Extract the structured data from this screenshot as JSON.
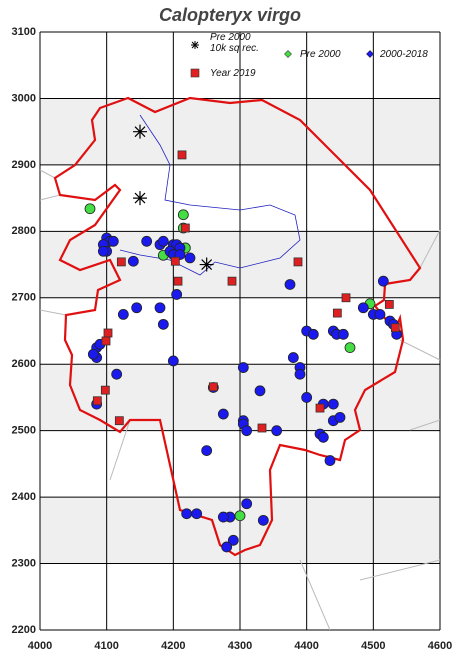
{
  "chart_data": {
    "type": "scatter",
    "title": "Calopteryx virgo",
    "xlim": [
      4000,
      4600
    ],
    "ylim": [
      2200,
      3100
    ],
    "xticks": [
      4000,
      4100,
      4200,
      4300,
      4400,
      4500,
      4600
    ],
    "yticks": [
      2200,
      2300,
      2400,
      2500,
      2600,
      2700,
      2800,
      2900,
      3000,
      3100
    ],
    "grid": true,
    "series": [
      {
        "name": "Pre 2000 10k sq rec.",
        "color": "#000000",
        "marker": "star",
        "x": [
          4150,
          4150,
          4250
        ],
        "y": [
          2950,
          2850,
          2750
        ]
      },
      {
        "name": "Pre 2000",
        "color": "#44dd44",
        "marker": "circle",
        "x": [
          4075,
          4215,
          4215,
          4185,
          4218,
          4495,
          4465,
          4300
        ],
        "y": [
          2834,
          2825,
          2805,
          2764,
          2775,
          2691,
          2625,
          2372
        ]
      },
      {
        "name": "2000-2018",
        "color": "#1a1aee",
        "marker": "circle",
        "x": [
          4100,
          4105,
          4095,
          4110,
          4100,
          4095,
          4160,
          4180,
          4185,
          4200,
          4205,
          4210,
          4195,
          4200,
          4210,
          4225,
          4140,
          4205,
          4145,
          4125,
          4180,
          4185,
          4375,
          4400,
          4410,
          4085,
          4090,
          4085,
          4080,
          4115,
          4200,
          4305,
          4380,
          4390,
          4390,
          4260,
          4330,
          4305,
          4275,
          4305,
          4310,
          4355,
          4400,
          4425,
          4440,
          4440,
          4450,
          4420,
          4425,
          4435,
          4310,
          4285,
          4275,
          4220,
          4235,
          4335,
          4290,
          4280,
          4250,
          4085,
          4515,
          4485,
          4500,
          4510,
          4525,
          4530,
          4535,
          4440,
          4445,
          4455
        ],
        "y": [
          2790,
          2785,
          2780,
          2785,
          2770,
          2770,
          2785,
          2780,
          2785,
          2780,
          2780,
          2775,
          2770,
          2765,
          2765,
          2760,
          2755,
          2705,
          2685,
          2675,
          2685,
          2660,
          2720,
          2650,
          2645,
          2625,
          2630,
          2610,
          2615,
          2585,
          2605,
          2595,
          2610,
          2595,
          2585,
          2565,
          2560,
          2515,
          2525,
          2510,
          2500,
          2500,
          2550,
          2540,
          2515,
          2540,
          2520,
          2495,
          2490,
          2455,
          2390,
          2370,
          2370,
          2375,
          2375,
          2365,
          2335,
          2325,
          2470,
          2540,
          2725,
          2685,
          2675,
          2675,
          2665,
          2660,
          2645,
          2650,
          2645,
          2645
        ]
      },
      {
        "name": "Year 2019",
        "color": "#e02020",
        "marker": "square",
        "x": [
          4213,
          4122,
          4218,
          4203,
          4207,
          4288,
          4387,
          4459,
          4446,
          4524,
          4533,
          4102,
          4099,
          4098,
          4086,
          4119,
          4260,
          4333,
          4420
        ],
        "y": [
          2915,
          2754,
          2805,
          2755,
          2725,
          2725,
          2754,
          2700,
          2677,
          2690,
          2655,
          2647,
          2635,
          2561,
          2545,
          2515,
          2566,
          2504,
          2534
        ]
      }
    ]
  }
}
